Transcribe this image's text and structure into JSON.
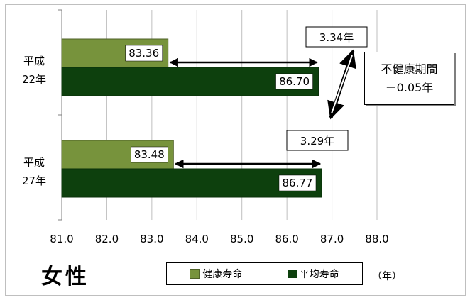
{
  "chart_data": {
    "type": "bar",
    "orientation": "horizontal",
    "title": "女性",
    "xlabel": "",
    "ylabel": "",
    "unit": "（年）",
    "xlim": [
      81.0,
      88.0
    ],
    "xticks": [
      "81.0",
      "82.0",
      "83.0",
      "84.0",
      "85.0",
      "86.0",
      "87.0",
      "88.0"
    ],
    "grid": true,
    "legend_position": "bottom",
    "categories": [
      {
        "line1": "平成",
        "line2": "22年"
      },
      {
        "line1": "平成",
        "line2": "27年"
      }
    ],
    "series": [
      {
        "name": "健康寿命",
        "color": "#77933c",
        "values": [
          83.36,
          83.48
        ],
        "labels": [
          "83.36",
          "83.48"
        ]
      },
      {
        "name": "平均寿命",
        "color": "#0d400d",
        "values": [
          86.7,
          86.77
        ],
        "labels": [
          "86.70",
          "86.77"
        ]
      }
    ],
    "annotations": {
      "gaps": [
        "3.34年",
        "3.29年"
      ],
      "note_line1": "不健康期間",
      "note_line2": "－0.05年"
    }
  }
}
